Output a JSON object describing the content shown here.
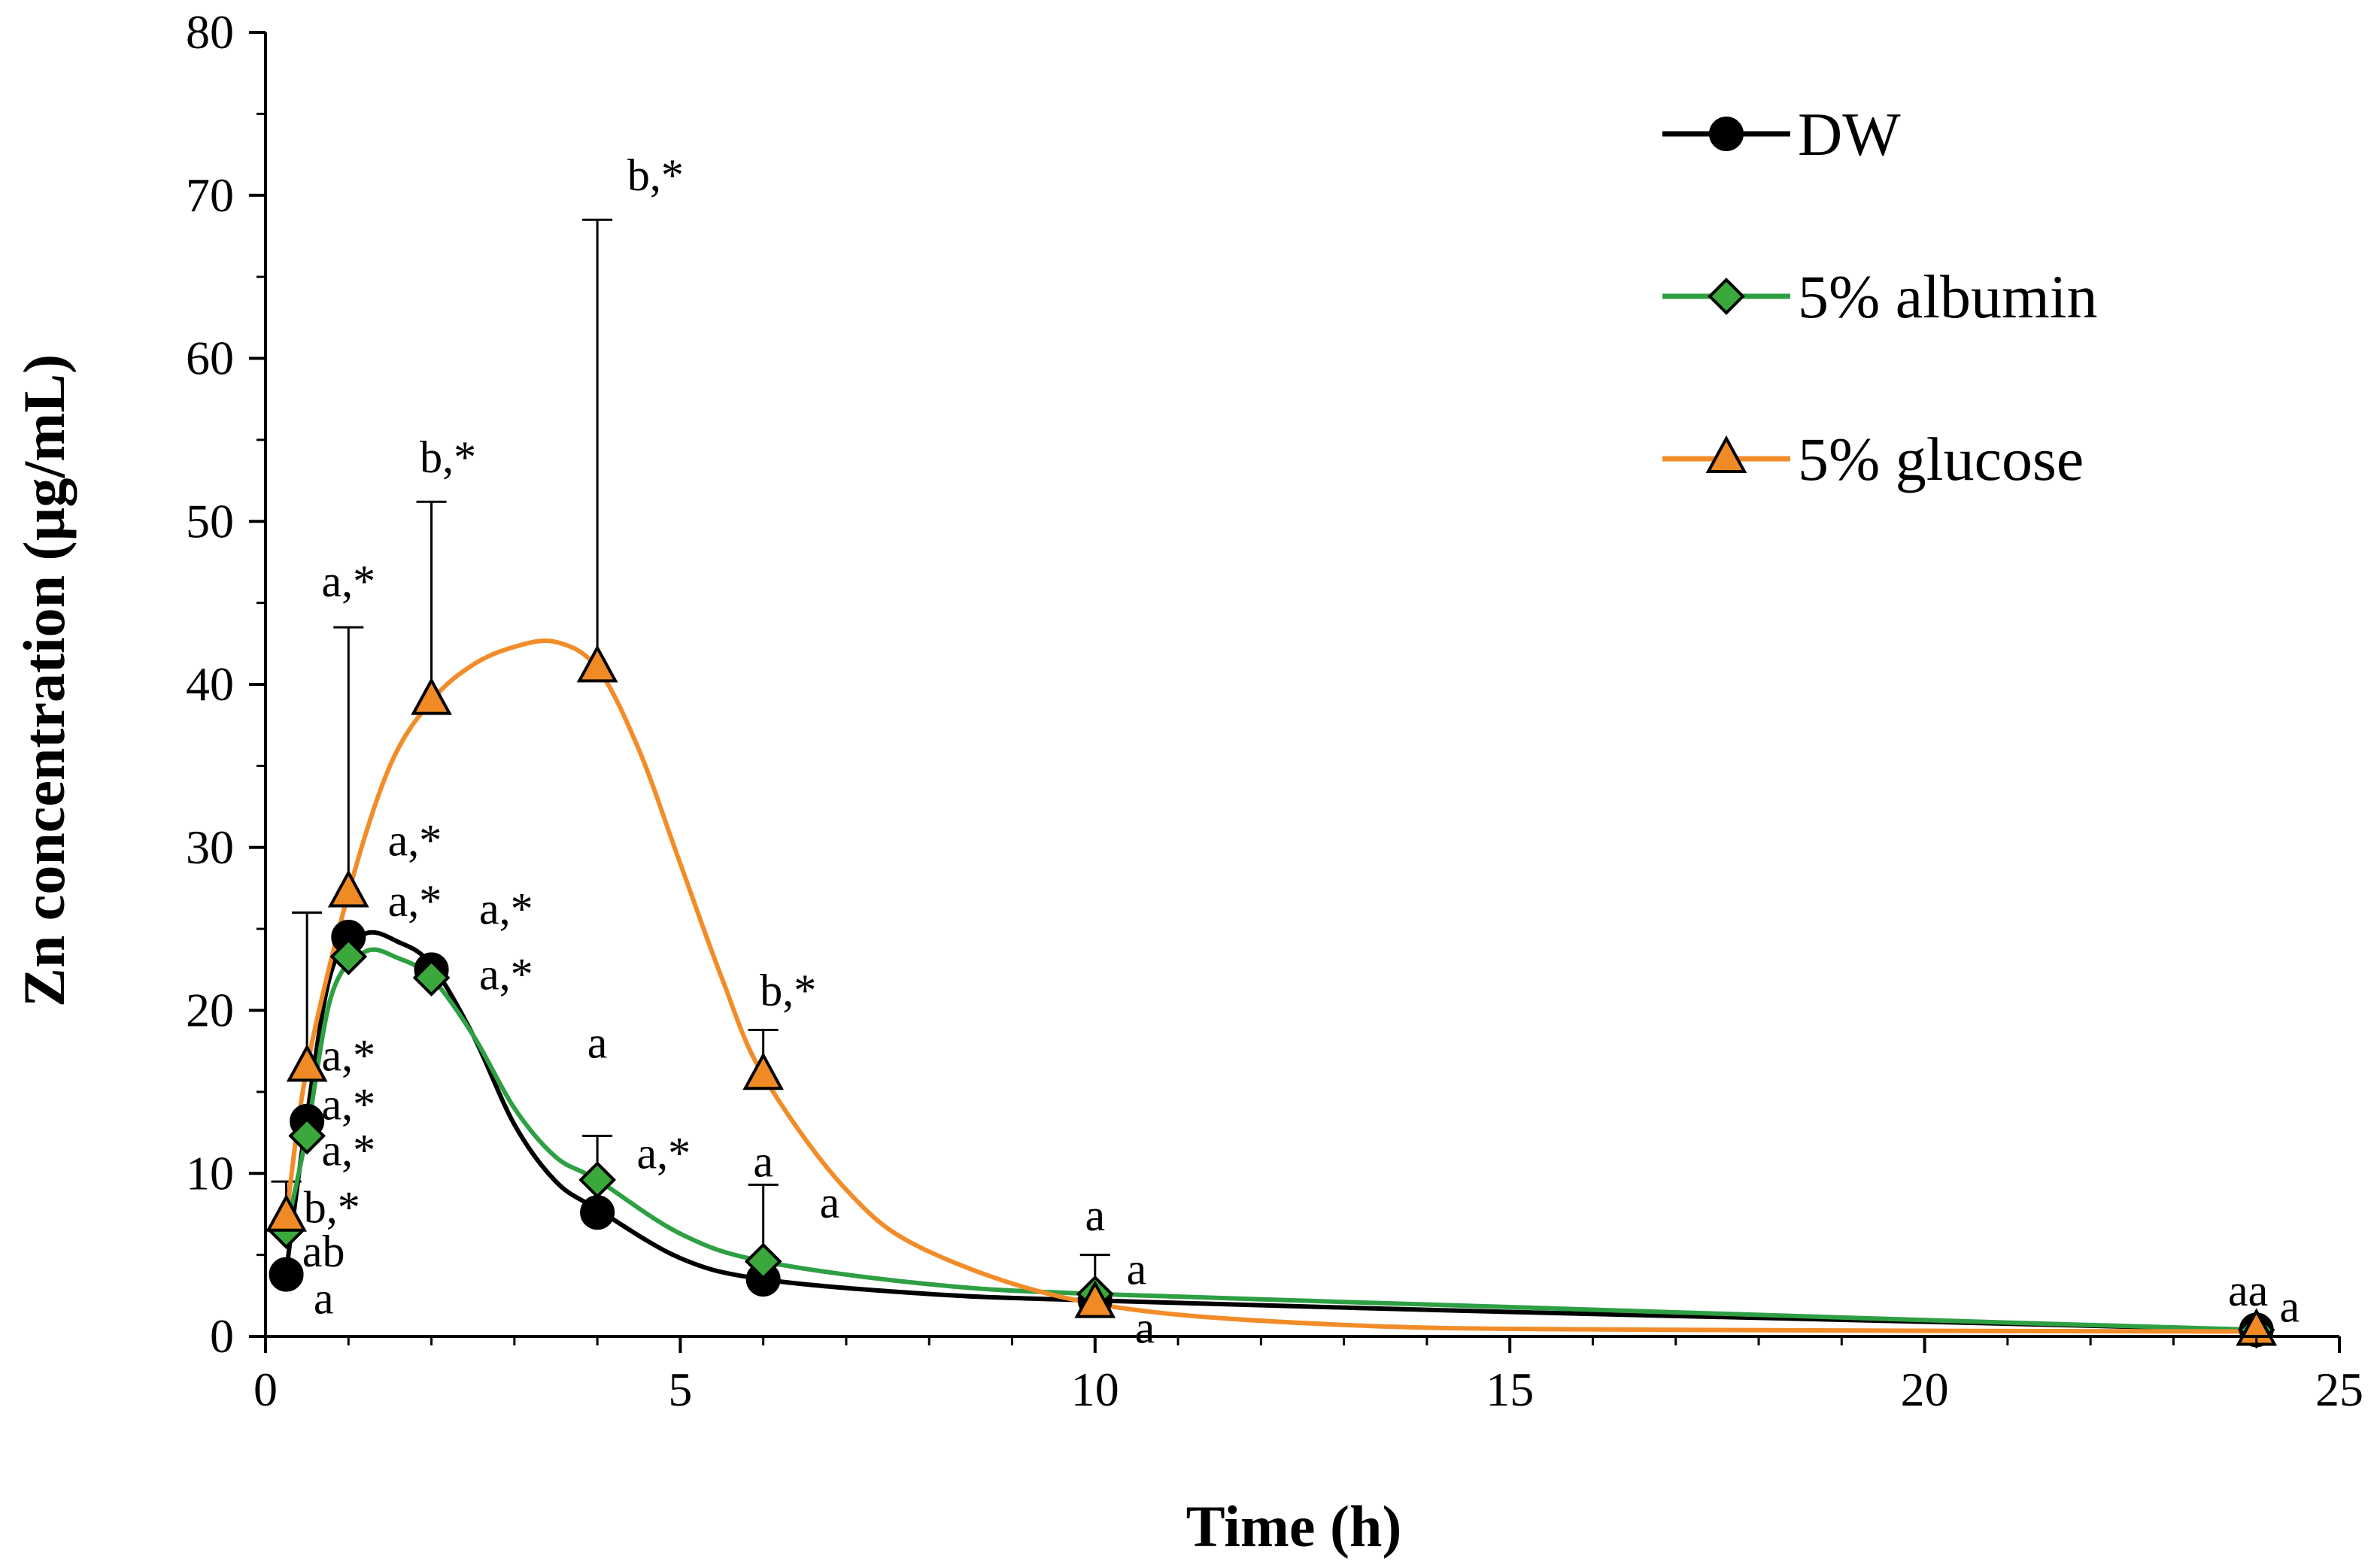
{
  "chart_data": {
    "type": "line",
    "title": "",
    "xlabel": "Time (h)",
    "ylabel": "Zn concentration (µg/mL)",
    "xlim": [
      0,
      25
    ],
    "ylim": [
      0,
      80
    ],
    "x_ticks": [
      0,
      5,
      10,
      15,
      20,
      25
    ],
    "y_ticks": [
      0,
      10,
      20,
      30,
      40,
      50,
      60,
      70,
      80
    ],
    "grid": false,
    "legend_position": "top-right",
    "x": [
      0.25,
      0.5,
      1,
      2,
      4,
      6,
      10,
      24
    ],
    "series": [
      {
        "name": "DW",
        "color": "#000000",
        "marker": "circle",
        "marker_fill": "#000000",
        "values": [
          3.8,
          13.2,
          24.5,
          22.5,
          7.6,
          3.5,
          2.2,
          0.4
        ],
        "error_upper": [
          null,
          null,
          null,
          null,
          null,
          null,
          null,
          null
        ],
        "curve": [
          [
            0.25,
            4.0
          ],
          [
            0.5,
            13.5
          ],
          [
            0.8,
            22.5
          ],
          [
            1.2,
            24.7
          ],
          [
            1.6,
            24.2
          ],
          [
            2,
            22.8
          ],
          [
            2.5,
            18.5
          ],
          [
            3,
            13.0
          ],
          [
            3.5,
            9.5
          ],
          [
            4,
            7.8
          ],
          [
            5,
            4.8
          ],
          [
            6,
            3.5
          ],
          [
            8,
            2.6
          ],
          [
            10,
            2.2
          ],
          [
            15,
            1.5
          ],
          [
            20,
            0.9
          ],
          [
            24,
            0.4
          ]
        ]
      },
      {
        "name": "5% albumin",
        "color": "#2ea043",
        "marker": "diamond",
        "marker_fill": "#3aa83a",
        "values": [
          6.5,
          12.3,
          23.3,
          22.0,
          9.6,
          4.6,
          2.6,
          0.4
        ],
        "error_upper": [
          null,
          null,
          null,
          null,
          12.3,
          9.3,
          5.0,
          null
        ],
        "curve": [
          [
            0.25,
            6.5
          ],
          [
            0.5,
            12.5
          ],
          [
            0.8,
            21.0
          ],
          [
            1.2,
            23.6
          ],
          [
            1.6,
            23.2
          ],
          [
            2,
            22.0
          ],
          [
            2.5,
            18.5
          ],
          [
            3,
            14.0
          ],
          [
            3.5,
            11.0
          ],
          [
            4,
            9.6
          ],
          [
            5,
            6.3
          ],
          [
            6,
            4.6
          ],
          [
            8,
            3.2
          ],
          [
            10,
            2.6
          ],
          [
            15,
            1.8
          ],
          [
            20,
            1.0
          ],
          [
            24,
            0.4
          ]
        ]
      },
      {
        "name": "5% glucose",
        "color": "#f28c28",
        "marker": "triangle",
        "marker_fill": "#f08a24",
        "values": [
          7.3,
          16.5,
          27.2,
          39.0,
          41.0,
          16.0,
          2.0,
          0.3
        ],
        "error_upper": [
          9.5,
          26.0,
          43.5,
          51.2,
          68.5,
          18.8,
          null,
          null
        ],
        "curve": [
          [
            0.25,
            7.3
          ],
          [
            0.5,
            16.5
          ],
          [
            1,
            27.2
          ],
          [
            1.5,
            35.0
          ],
          [
            2,
            39.0
          ],
          [
            2.5,
            41.2
          ],
          [
            3,
            42.3
          ],
          [
            3.5,
            42.6
          ],
          [
            4,
            41.0
          ],
          [
            4.5,
            36.0
          ],
          [
            5,
            29.0
          ],
          [
            5.5,
            22.0
          ],
          [
            6,
            16.0
          ],
          [
            7,
            9.0
          ],
          [
            8,
            5.2
          ],
          [
            10,
            2.0
          ],
          [
            13,
            0.7
          ],
          [
            17,
            0.4
          ],
          [
            24,
            0.3
          ]
        ]
      }
    ],
    "annotations": [
      {
        "text": "b,*",
        "x": 4.7,
        "y": 70.3
      },
      {
        "text": "b,*",
        "x": 2.2,
        "y": 53.0
      },
      {
        "text": "a,*",
        "x": 1.0,
        "y": 45.4
      },
      {
        "text": "a,*",
        "x": 1.8,
        "y": 29.5
      },
      {
        "text": "a,*",
        "x": 1.8,
        "y": 25.8
      },
      {
        "text": "a,*",
        "x": 2.9,
        "y": 25.3
      },
      {
        "text": "a,*",
        "x": 2.9,
        "y": 21.3
      },
      {
        "text": "a,*",
        "x": 1.0,
        "y": 16.3
      },
      {
        "text": "a,*",
        "x": 1.0,
        "y": 13.3
      },
      {
        "text": "a,*",
        "x": 1.0,
        "y": 10.5
      },
      {
        "text": "b,*",
        "x": 0.8,
        "y": 7.0
      },
      {
        "text": "ab",
        "x": 0.7,
        "y": 4.3
      },
      {
        "text": "a",
        "x": 0.7,
        "y": 1.4
      },
      {
        "text": "a",
        "x": 4.0,
        "y": 17.1
      },
      {
        "text": "a,*",
        "x": 4.8,
        "y": 10.3
      },
      {
        "text": "b,*",
        "x": 6.3,
        "y": 20.3
      },
      {
        "text": "a",
        "x": 6.0,
        "y": 9.8
      },
      {
        "text": "a",
        "x": 6.8,
        "y": 7.3
      },
      {
        "text": "a",
        "x": 10.0,
        "y": 6.5
      },
      {
        "text": "a",
        "x": 10.5,
        "y": 3.2
      },
      {
        "text": "a",
        "x": 10.6,
        "y": -0.4
      },
      {
        "text": "aa",
        "x": 23.9,
        "y": 1.9
      },
      {
        "text": "a",
        "x": 24.4,
        "y": 0.9
      }
    ]
  }
}
